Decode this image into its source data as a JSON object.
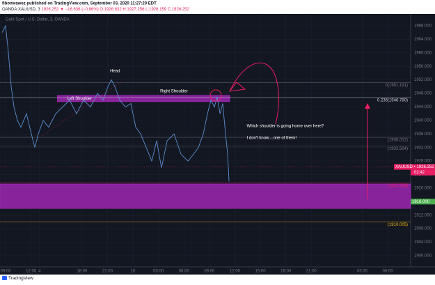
{
  "header": {
    "publisher": "fibonwawez published on TradingView.com, September 03, 2020 11:27:20 EDT",
    "symbol": "OANDA:XAUUSD, 3",
    "last": "1926.252",
    "change": "▼ −16.636 (−0.86%)",
    "open": "O:1926.632",
    "high": "H:1927.256",
    "low": "L:1926.159",
    "close": "C:1926.252"
  },
  "chart_data": {
    "type": "line",
    "title": "Gold Spot / U.S. Dollar, 3, OANDA",
    "x": [
      -0.41,
      0,
      0.33,
      0.66,
      0.98,
      1.39,
      1.8,
      2.46,
      3.03,
      3.44,
      3.85,
      4.43,
      5.08,
      5.9,
      6.72,
      7.54,
      8.36,
      9.18,
      10,
      10.82,
      11.48,
      12.05,
      12.46,
      12.87,
      13.44,
      14.1,
      14.75,
      15.33,
      15.9,
      16.56,
      17.21,
      17.79,
      18.36,
      19.02,
      19.84,
      20.66,
      21.48,
      22.13,
      22.7,
      23.28,
      23.77,
      24.18,
      24.59,
      24.92,
      25.25,
      25.57,
      25.9,
      26.15,
      26.31
    ],
    "series": [
      {
        "name": "XAUUSD",
        "color": "#5b8fd1",
        "values": [
          1966,
          1968,
          1960,
          1950,
          1944,
          1940,
          1938,
          1942,
          1936,
          1932,
          1936,
          1940,
          1938,
          1942,
          1944,
          1946,
          1942,
          1946,
          1944,
          1948,
          1946,
          1950,
          1952,
          1950,
          1946,
          1944,
          1945,
          1938,
          1936,
          1932,
          1928,
          1934,
          1926,
          1934,
          1936,
          1930,
          1928,
          1930,
          1932,
          1936,
          1942,
          1946,
          1944,
          1947,
          1942,
          1945,
          1936,
          1930,
          1922
        ]
      }
    ],
    "xlim": [
      -0.66,
      47.7
    ],
    "xticks": [
      {
        "value": 0,
        "label": "09:00"
      },
      {
        "value": 3,
        "label": "12:00"
      },
      {
        "value": 9,
        "label": "18:00"
      },
      {
        "value": 12,
        "label": "21:00"
      },
      15,
      {
        "value": 18,
        "label": "03:00"
      },
      {
        "value": 21,
        "label": "06:00"
      },
      {
        "value": 24,
        "label": "09:00"
      },
      {
        "value": 27,
        "label": "12:00"
      },
      {
        "value": 30,
        "label": "15:00"
      },
      {
        "value": 33,
        "label": "18:00"
      },
      {
        "value": 36,
        "label": "21:00"
      },
      4,
      {
        "value": 42,
        "label": "03:00"
      },
      {
        "value": 45,
        "label": "06:00"
      }
    ],
    "ylim": [
      1896.7,
      1971.5
    ],
    "yticks": [
      {
        "value": 1900,
        "label": "1900.000"
      },
      {
        "value": 1904,
        "label": "1904.000"
      },
      {
        "value": 1908,
        "label": "1908.000"
      },
      {
        "value": 1912,
        "label": "1912.000"
      },
      {
        "value": 1920,
        "label": "1920.000"
      },
      {
        "value": 1924,
        "label": "1924.000"
      },
      {
        "value": 1928,
        "label": "1928.000"
      },
      {
        "value": 1932,
        "label": "1932.000"
      },
      {
        "value": 1936,
        "label": "1936.000"
      },
      {
        "value": 1940,
        "label": "1940.000"
      },
      {
        "value": 1944,
        "label": "1944.000"
      },
      {
        "value": 1948,
        "label": "1948.000"
      },
      {
        "value": 1952,
        "label": "1952.000"
      },
      {
        "value": 1956,
        "label": "1956.000"
      },
      {
        "value": 1960,
        "label": "1960.000"
      },
      {
        "value": 1964,
        "label": "1964.000"
      },
      {
        "value": 1968,
        "label": "1968.000"
      }
    ],
    "grid": true,
    "levels": [
      {
        "value": 1951.191,
        "label": "0(1951.191)",
        "color": "#787b86"
      },
      {
        "value": 1946.78,
        "label": "0.236(1946.780)",
        "color": "#d1d4dc"
      },
      {
        "value": 1935.012,
        "label": "(1935.012)",
        "color": "#787b86"
      },
      {
        "value": 1932.504,
        "label": "(1932.504)",
        "color": "#787b86"
      },
      {
        "value": 1921.538,
        "label": "(1921.538)",
        "color": "#e91e63"
      },
      {
        "value": 1910.005,
        "label": "(1910.005)",
        "color": "#f0b90b"
      }
    ],
    "zones": [
      {
        "low": 1945.6,
        "high": 1947.4,
        "from": 6.1,
        "to": 26.4,
        "color": "#9c27b0",
        "label": "Left Shoulder"
      },
      {
        "low": 1914,
        "high": 1921.2,
        "from": -0.66,
        "to": 47.7,
        "color": "#9c27b0"
      }
    ],
    "annotations": [
      {
        "text": "Head",
        "x": 12.3,
        "y": 1954.6
      },
      {
        "text": "Right Shoulder",
        "x": 18.2,
        "y": 1948.6
      },
      {
        "text": "Which shoulder is going home over here?",
        "x": 28.4,
        "y": 1938.3
      },
      {
        "text": "I don't know....one of them!",
        "x": 28.4,
        "y": 1934.8
      }
    ],
    "price_tags": [
      {
        "value": 1926.252,
        "label": "XAUUSD • 1926.252",
        "color": "#e91e63",
        "countdown": "02:42"
      },
      {
        "value": 1916,
        "label": "1916.000",
        "color": "#4caf50"
      }
    ]
  },
  "footer": {
    "brand": "TradingView"
  }
}
